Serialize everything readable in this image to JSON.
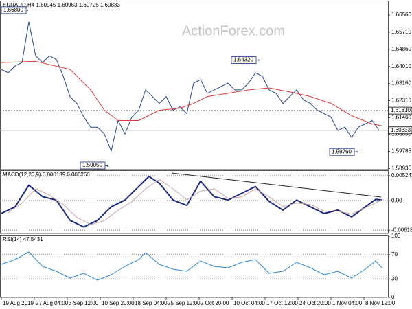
{
  "chart_data": [
    {
      "type": "line",
      "title": "EURAUD,H4 1.60945 1.60963 1.60725 1.60833",
      "watermark": "ActionForex.com",
      "xlim": [
        -0.2,
        56.3
      ],
      "ylim": [
        1.5888,
        1.6724
      ],
      "grid": false,
      "x": [
        0,
        1,
        2,
        3,
        4,
        5,
        6,
        7,
        8,
        9,
        10,
        11,
        12,
        13,
        14,
        15,
        16,
        17,
        18,
        19,
        20,
        21,
        22,
        23,
        24,
        25,
        26,
        27,
        28,
        29,
        30,
        31,
        32,
        33,
        34,
        35,
        36,
        37,
        38,
        39,
        40,
        41,
        42,
        43,
        44,
        45,
        46,
        47,
        48,
        49,
        50,
        51,
        52,
        53,
        54,
        55
      ],
      "series": [
        {
          "color": "#24478a",
          "width": 1,
          "values": [
            1.6386,
            1.6369,
            1.6403,
            1.642,
            1.6622,
            1.6453,
            1.642,
            1.6453,
            1.6436,
            1.6352,
            1.6251,
            1.6217,
            1.6149,
            1.6099,
            1.6099,
            1.6065,
            1.598,
            1.6132,
            1.6065,
            1.6149,
            1.6183,
            1.6284,
            1.6251,
            1.6217,
            1.6251,
            1.6183,
            1.62,
            1.6166,
            1.6318,
            1.6335,
            1.6267,
            1.6284,
            1.6301,
            1.6318,
            1.6284,
            1.6284,
            1.6318,
            1.6369,
            1.6352,
            1.6284,
            1.6267,
            1.6217,
            1.6251,
            1.6284,
            1.6234,
            1.6217,
            1.6183,
            1.6166,
            1.6149,
            1.6082,
            1.6099,
            1.6048,
            1.6099,
            1.6115,
            1.6132,
            1.6083
          ]
        },
        {
          "color": "#e03a3a",
          "width": 1,
          "x": [
            0,
            5,
            10,
            13,
            15,
            17,
            20,
            23,
            26,
            28,
            30,
            33,
            36,
            39,
            42,
            45,
            48,
            51,
            54,
            55.5
          ],
          "values": [
            1.642,
            1.6426,
            1.6386,
            1.6284,
            1.6183,
            1.6132,
            1.6132,
            1.6183,
            1.6193,
            1.6217,
            1.6251,
            1.6267,
            1.6284,
            1.6294,
            1.6274,
            1.6251,
            1.6217,
            1.6156,
            1.6115,
            1.6105
          ]
        }
      ],
      "yticks": [
        {
          "value": 1.6656,
          "label": "1.66560"
        },
        {
          "value": 1.6571,
          "label": "1.65710"
        },
        {
          "value": 1.6486,
          "label": "1.64860"
        },
        {
          "value": 1.6401,
          "label": "1.64010"
        },
        {
          "value": 1.6316,
          "label": "1.63160"
        },
        {
          "value": 1.6231,
          "label": "1.62310"
        },
        {
          "value": 1.6146,
          "label": "1.61460"
        },
        1.60635,
        1.59785,
        1.58935
      ],
      "xticks": [
        {
          "value": 0,
          "label": "19 Aug 2019"
        },
        {
          "value": 4.8,
          "label": "27 Aug 04:00"
        },
        {
          "value": 9.6,
          "label": "3 Sep 12:00"
        },
        {
          "value": 14.4,
          "label": "10 Sep 20:00"
        },
        {
          "value": 19.2,
          "label": "18 Sep 04:00"
        },
        {
          "value": 24,
          "label": "25 Sep 12:00"
        },
        {
          "value": 28.8,
          "label": "2 Oct 20:00"
        },
        {
          "value": 33.6,
          "label": "10 Oct 04:00"
        },
        {
          "value": 38.4,
          "label": "17 Oct 12:00"
        },
        {
          "value": 43.2,
          "label": "24 Oct 20:00"
        },
        {
          "value": 48,
          "label": "1 Nov 04:00"
        },
        {
          "value": 52.8,
          "label": "8 Nov 12:00"
        }
      ],
      "annotations": [
        {
          "x": 3.8,
          "value": 1.668,
          "label": "1.66800"
        },
        {
          "x": 15.5,
          "value": 1.5905,
          "label": "1.59050"
        },
        {
          "x": 37.5,
          "value": 1.6432,
          "label": "1.64320"
        },
        {
          "x": 51.8,
          "value": 1.5976,
          "label": "1.59760"
        }
      ],
      "levels": [
        {
          "value": 1.6181,
          "label": "1.61810",
          "style": "dotted"
        },
        {
          "value": 1.60833,
          "label": "1.60833",
          "style": "solid"
        }
      ]
    },
    {
      "type": "line",
      "title": "MACD(12,26,9) 0.000139 0.000260",
      "ylim": [
        -0.00688,
        0.00624
      ],
      "grid": true,
      "yticks": [
        0.005243,
        {
          "value": 0,
          "label": "0.00"
        },
        -0.006186
      ],
      "series": [
        {
          "color": "#1a2a80",
          "width": 2,
          "x": [
            0,
            2,
            4,
            6,
            8,
            10,
            12,
            14,
            16,
            18,
            20,
            21.5,
            23,
            25,
            27,
            29,
            31,
            33,
            35,
            37,
            39,
            41,
            43,
            45,
            47,
            49,
            51,
            53,
            54.5,
            55.5
          ],
          "values": [
            -0.00269,
            -0.00128,
            0.00326,
            0.00085,
            0.00014,
            -0.00411,
            -0.00553,
            -0.00411,
            -0.00128,
            0.00014,
            0.00298,
            0.0051,
            0.00368,
            0.00014,
            -0.00099,
            0.00411,
            0.00085,
            0.00014,
            0.00156,
            0.00298,
            -0.00014,
            -0.00198,
            0.00014,
            -0.00128,
            -0.00269,
            -0.00198,
            -0.0034,
            -0.00128,
            0.00028,
            0.000139
          ]
        },
        {
          "color": "#c9a3a3",
          "width": 1,
          "x": [
            1,
            3,
            5,
            7,
            9,
            11,
            13,
            15,
            17,
            19,
            21,
            23,
            25,
            27,
            29,
            31,
            33,
            35,
            37,
            39,
            41,
            43,
            45,
            47,
            49,
            51,
            53,
            55.5
          ],
          "values": [
            -0.0025,
            -0.0005,
            0.0025,
            0.0012,
            -0.0008,
            -0.0035,
            -0.005,
            -0.0042,
            -0.002,
            -0.0002,
            0.0025,
            0.0045,
            0.0025,
            0.0002,
            0.002,
            0.0025,
            0.0005,
            0.0008,
            0.0025,
            0.0008,
            -0.0012,
            -0.0005,
            -0.0008,
            -0.0022,
            -0.0022,
            -0.0028,
            -0.0015,
            0.00026
          ]
        }
      ]
    },
    {
      "type": "line",
      "title": "RSI(14) 47.5431",
      "ylim": [
        0,
        100
      ],
      "grid": true,
      "yticks": [
        100,
        70,
        30,
        0
      ],
      "series": [
        {
          "color": "#2f86d6",
          "width": 1,
          "x": [
            0,
            2,
            4,
            6,
            8,
            10,
            12,
            14,
            16,
            18,
            20,
            21,
            23,
            25,
            27,
            29,
            31,
            33,
            35,
            37,
            39,
            41,
            43,
            45,
            47,
            49,
            51,
            53,
            54.5,
            55.5
          ],
          "values": [
            53.9,
            61.8,
            74.2,
            50.6,
            42.7,
            31.5,
            39.3,
            28.1,
            37.1,
            50.6,
            61.8,
            73.0,
            53.9,
            46.1,
            42.7,
            59.6,
            50.6,
            48.3,
            57.3,
            61.8,
            39.3,
            42.7,
            57.3,
            48.3,
            37.1,
            42.7,
            31.5,
            46.1,
            59.6,
            47.5431
          ]
        }
      ]
    }
  ]
}
